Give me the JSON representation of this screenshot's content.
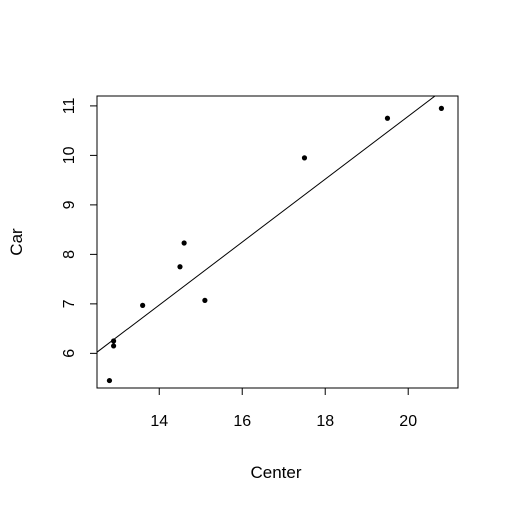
{
  "chart_data": {
    "type": "scatter",
    "title": "",
    "xlabel": "Center",
    "ylabel": "Car",
    "xlim": [
      12.5,
      21.2
    ],
    "ylim": [
      5.3,
      11.2
    ],
    "xticks": [
      14,
      16,
      18,
      20
    ],
    "yticks": [
      6,
      7,
      8,
      9,
      10,
      11
    ],
    "grid": false,
    "legend": "none",
    "points": [
      {
        "x": 12.8,
        "y": 5.45
      },
      {
        "x": 12.9,
        "y": 6.15
      },
      {
        "x": 12.9,
        "y": 6.25
      },
      {
        "x": 13.6,
        "y": 6.97
      },
      {
        "x": 14.5,
        "y": 7.75
      },
      {
        "x": 14.6,
        "y": 8.23
      },
      {
        "x": 15.1,
        "y": 7.07
      },
      {
        "x": 17.5,
        "y": 9.95
      },
      {
        "x": 19.5,
        "y": 10.75
      },
      {
        "x": 20.8,
        "y": 10.95
      }
    ],
    "fit_line": {
      "slope": 0.6355,
      "intercept": -1.92
    },
    "colors": {
      "points": "#000000",
      "line": "#000000",
      "axes": "#000000"
    }
  }
}
